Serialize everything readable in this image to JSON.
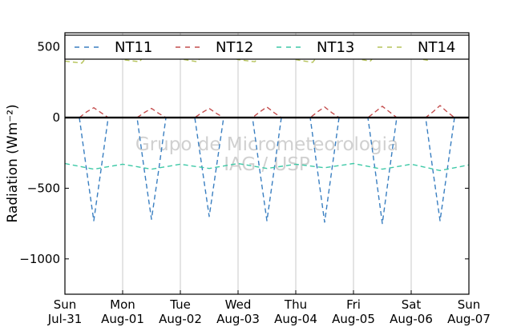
{
  "chart_data": {
    "type": "line",
    "ylabel": "Radiation (Wm⁻²)",
    "ylim": [
      -1250,
      600
    ],
    "yticks": [
      500,
      0,
      -500,
      -1000
    ],
    "ytick_labels": [
      "500",
      "0",
      "−500",
      "−1000"
    ],
    "x_start": "2011-07-31",
    "x_end": "2011-08-07",
    "xtick_labels": [
      [
        "Sun",
        "Jul-31"
      ],
      [
        "Mon",
        "Aug-01"
      ],
      [
        "Tue",
        "Aug-02"
      ],
      [
        "Wed",
        "Aug-03"
      ],
      [
        "Thu",
        "Aug-04"
      ],
      [
        "Fri",
        "Aug-05"
      ],
      [
        "Sat",
        "Aug-06"
      ],
      [
        "Sun",
        "Aug-07"
      ]
    ],
    "grid": "vertical",
    "legend_position": "top",
    "zero_line": true,
    "watermark": [
      "Grupo de Micrometeorologia",
      "IAG / USP"
    ],
    "series": [
      {
        "name": "NT11",
        "color": "#3a7fc1",
        "x": [
          "2011-07-31T06:00",
          "2011-07-31T09:00",
          "2011-07-31T12:00",
          "2011-07-31T15:00",
          "2011-07-31T18:00",
          "2011-08-01T06:00",
          "2011-08-01T09:00",
          "2011-08-01T12:00",
          "2011-08-01T15:00",
          "2011-08-01T18:00",
          "2011-08-02T06:00",
          "2011-08-02T09:00",
          "2011-08-02T12:00",
          "2011-08-02T15:00",
          "2011-08-02T18:00",
          "2011-08-03T06:00",
          "2011-08-03T09:00",
          "2011-08-03T12:00",
          "2011-08-03T15:00",
          "2011-08-03T18:00",
          "2011-08-04T06:00",
          "2011-08-04T09:00",
          "2011-08-04T12:00",
          "2011-08-04T15:00",
          "2011-08-04T18:00",
          "2011-08-05T06:00",
          "2011-08-05T09:00",
          "2011-08-05T12:00",
          "2011-08-05T15:00",
          "2011-08-05T18:00",
          "2011-08-06T06:00",
          "2011-08-06T09:00",
          "2011-08-06T12:00",
          "2011-08-06T15:00",
          "2011-08-06T18:00"
        ],
        "y": [
          0,
          -370,
          -730,
          -370,
          0,
          0,
          -370,
          -720,
          -370,
          0,
          0,
          -350,
          -700,
          -350,
          0,
          0,
          -370,
          -730,
          -370,
          0,
          0,
          -370,
          -740,
          -370,
          0,
          0,
          -370,
          -750,
          -370,
          0,
          0,
          -370,
          -730,
          -370,
          0
        ]
      },
      {
        "name": "NT12",
        "color": "#c44e4e",
        "x": [
          "2011-07-31T06:00",
          "2011-07-31T09:00",
          "2011-07-31T12:00",
          "2011-07-31T15:00",
          "2011-07-31T18:00",
          "2011-08-01T06:00",
          "2011-08-01T09:00",
          "2011-08-01T12:00",
          "2011-08-01T15:00",
          "2011-08-01T18:00",
          "2011-08-02T06:00",
          "2011-08-02T09:00",
          "2011-08-02T12:00",
          "2011-08-02T15:00",
          "2011-08-02T18:00",
          "2011-08-03T06:00",
          "2011-08-03T09:00",
          "2011-08-03T12:00",
          "2011-08-03T15:00",
          "2011-08-03T18:00",
          "2011-08-04T06:00",
          "2011-08-04T09:00",
          "2011-08-04T12:00",
          "2011-08-04T15:00",
          "2011-08-04T18:00",
          "2011-08-05T06:00",
          "2011-08-05T09:00",
          "2011-08-05T12:00",
          "2011-08-05T15:00",
          "2011-08-05T18:00",
          "2011-08-06T06:00",
          "2011-08-06T09:00",
          "2011-08-06T12:00",
          "2011-08-06T15:00",
          "2011-08-06T18:00"
        ],
        "y": [
          0,
          40,
          70,
          35,
          0,
          0,
          35,
          65,
          30,
          0,
          0,
          35,
          65,
          30,
          0,
          0,
          40,
          75,
          35,
          0,
          0,
          40,
          75,
          35,
          0,
          0,
          40,
          80,
          40,
          0,
          0,
          40,
          85,
          40,
          0
        ]
      },
      {
        "name": "NT13",
        "color": "#3ec9a7",
        "x": [
          "2011-07-31T00:00",
          "2011-07-31T12:00",
          "2011-08-01T00:00",
          "2011-08-01T12:00",
          "2011-08-02T00:00",
          "2011-08-02T12:00",
          "2011-08-03T00:00",
          "2011-08-03T12:00",
          "2011-08-04T00:00",
          "2011-08-04T12:00",
          "2011-08-05T00:00",
          "2011-08-05T12:00",
          "2011-08-06T00:00",
          "2011-08-06T12:00",
          "2011-08-07T00:00"
        ],
        "y": [
          -325,
          -365,
          -330,
          -365,
          -330,
          -360,
          -325,
          -360,
          -330,
          -355,
          -325,
          -365,
          -330,
          -375,
          -335
        ]
      },
      {
        "name": "NT14",
        "color": "#b6c45a",
        "x": [
          "2011-07-31T00:00",
          "2011-07-31T07:00",
          "2011-07-31T13:00",
          "2011-07-31T19:00",
          "2011-08-01T00:00",
          "2011-08-01T07:00",
          "2011-08-01T13:00",
          "2011-08-01T19:00",
          "2011-08-02T00:00",
          "2011-08-02T07:00",
          "2011-08-02T13:00",
          "2011-08-02T19:00",
          "2011-08-03T00:00",
          "2011-08-03T07:00",
          "2011-08-03T13:00",
          "2011-08-03T19:00",
          "2011-08-04T00:00",
          "2011-08-04T07:00",
          "2011-08-04T13:00",
          "2011-08-04T19:00",
          "2011-08-05T00:00",
          "2011-08-05T07:00",
          "2011-08-05T13:00",
          "2011-08-05T19:00",
          "2011-08-06T00:00",
          "2011-08-06T07:00",
          "2011-08-06T13:00",
          "2011-08-06T19:00",
          "2011-08-07T00:00"
        ],
        "y": [
          400,
          385,
          510,
          440,
          410,
          395,
          520,
          440,
          415,
          395,
          515,
          440,
          410,
          395,
          515,
          440,
          410,
          390,
          520,
          440,
          420,
          400,
          515,
          445,
          425,
          405,
          520,
          450,
          420
        ]
      }
    ]
  }
}
